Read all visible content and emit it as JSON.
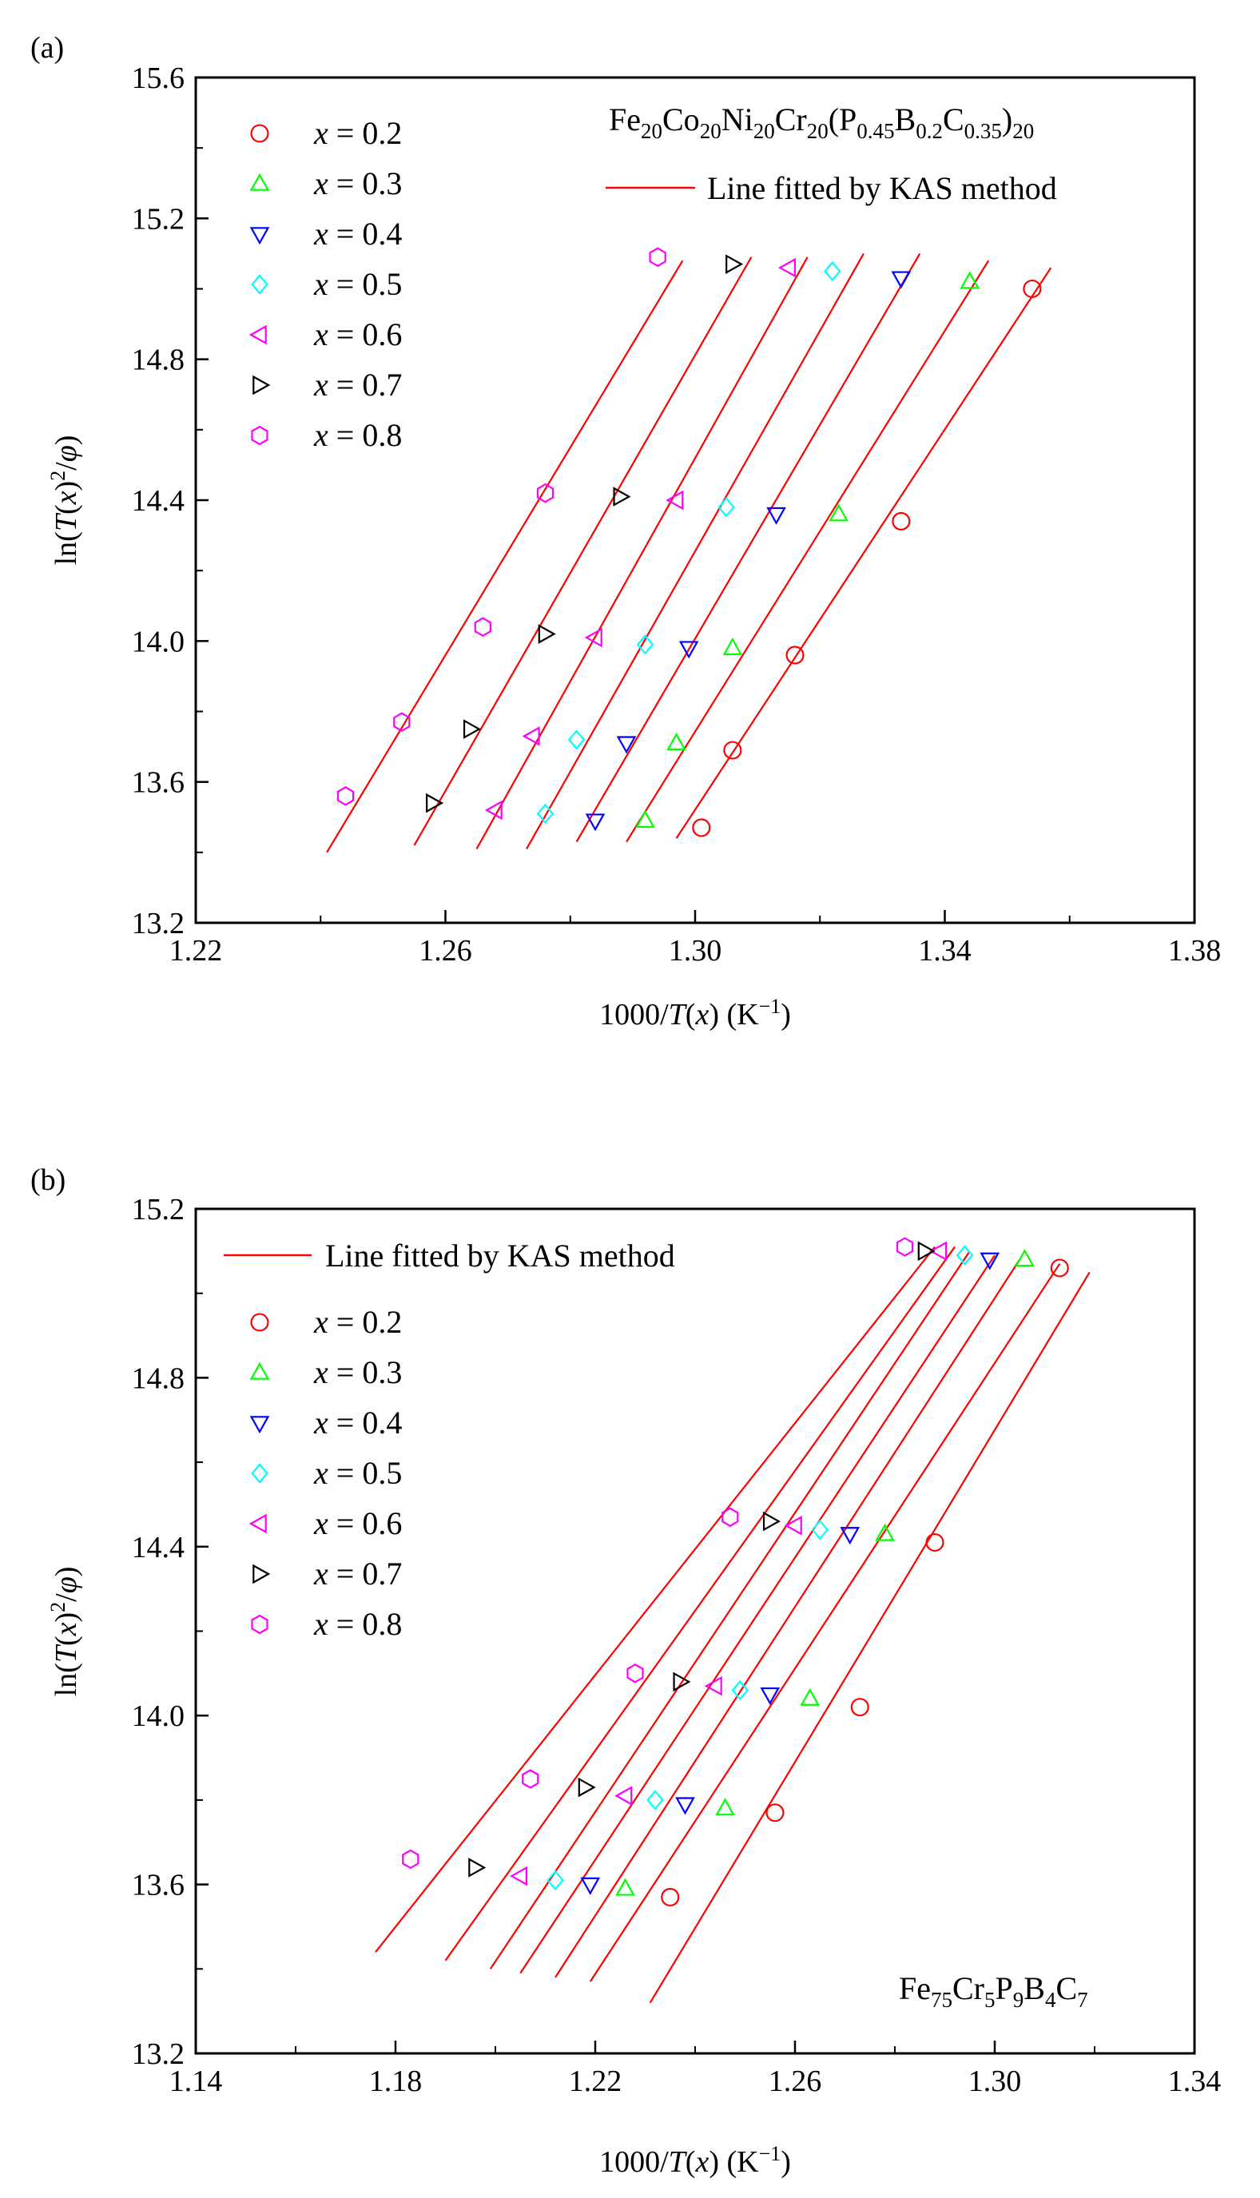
{
  "chart_data": [
    {
      "panel_label": "(a)",
      "type": "scatter",
      "title": "Fe20Co20Ni20Cr20(P0.45B0.2C0.35)20",
      "xlabel": "1000/T(x) (K−1)",
      "ylabel": "ln(T(x)2/φ)",
      "xlim": [
        1.22,
        1.38
      ],
      "ylim": [
        13.2,
        15.6
      ],
      "x_ticks": [
        "1.22",
        "1.26",
        "1.30",
        "1.34",
        "1.38"
      ],
      "y_ticks": [
        "13.2",
        "13.6",
        "14.0",
        "14.4",
        "14.8",
        "15.2",
        "15.6"
      ],
      "legend_position": "top-left",
      "fit_legend_position": "top-right",
      "fit_label": "Line fitted by KAS method",
      "series": [
        {
          "name": "x = 0.2",
          "marker": "circle",
          "color": "#ff0000",
          "points": [
            [
              1.301,
              13.47
            ],
            [
              1.306,
              13.69
            ],
            [
              1.316,
              13.96
            ],
            [
              1.333,
              14.34
            ],
            [
              1.354,
              15.0
            ]
          ],
          "fit": [
            [
              1.297,
              13.44
            ],
            [
              1.357,
              15.06
            ]
          ]
        },
        {
          "name": "x = 0.3",
          "marker": "triangle-up",
          "color": "#00ff00",
          "points": [
            [
              1.292,
              13.49
            ],
            [
              1.297,
              13.71
            ],
            [
              1.306,
              13.98
            ],
            [
              1.323,
              14.36
            ],
            [
              1.344,
              15.02
            ]
          ],
          "fit": [
            [
              1.289,
              13.43
            ],
            [
              1.347,
              15.08
            ]
          ]
        },
        {
          "name": "x = 0.4",
          "marker": "triangle-down",
          "color": "#0000ff",
          "points": [
            [
              1.284,
              13.49
            ],
            [
              1.289,
              13.71
            ],
            [
              1.299,
              13.98
            ],
            [
              1.313,
              14.36
            ],
            [
              1.333,
              15.03
            ]
          ],
          "fit": [
            [
              1.281,
              13.43
            ],
            [
              1.336,
              15.1
            ]
          ]
        },
        {
          "name": "x = 0.5",
          "marker": "diamond",
          "color": "#00ffff",
          "points": [
            [
              1.276,
              13.51
            ],
            [
              1.281,
              13.72
            ],
            [
              1.292,
              13.99
            ],
            [
              1.305,
              14.38
            ],
            [
              1.322,
              15.05
            ]
          ],
          "fit": [
            [
              1.273,
              13.41
            ],
            [
              1.327,
              15.1
            ]
          ]
        },
        {
          "name": "x = 0.6",
          "marker": "triangle-left",
          "color": "#ff00ff",
          "points": [
            [
              1.268,
              13.52
            ],
            [
              1.274,
              13.73
            ],
            [
              1.284,
              14.01
            ],
            [
              1.297,
              14.4
            ],
            [
              1.315,
              15.06
            ]
          ],
          "fit": [
            [
              1.265,
              13.41
            ],
            [
              1.318,
              15.09
            ]
          ]
        },
        {
          "name": "x = 0.7",
          "marker": "triangle-right",
          "color": "#000000",
          "points": [
            [
              1.258,
              13.54
            ],
            [
              1.264,
              13.75
            ],
            [
              1.276,
              14.02
            ],
            [
              1.288,
              14.41
            ],
            [
              1.306,
              15.07
            ]
          ],
          "fit": [
            [
              1.255,
              13.42
            ],
            [
              1.309,
              15.09
            ]
          ]
        },
        {
          "name": "x = 0.8",
          "marker": "hexagon",
          "color": "#ff00ff",
          "points": [
            [
              1.244,
              13.56
            ],
            [
              1.253,
              13.77
            ],
            [
              1.266,
              14.04
            ],
            [
              1.276,
              14.42
            ],
            [
              1.294,
              15.09
            ]
          ],
          "fit": [
            [
              1.241,
              13.4
            ],
            [
              1.298,
              15.08
            ]
          ]
        }
      ]
    },
    {
      "panel_label": "(b)",
      "type": "scatter",
      "title": "Fe75Cr5P9B4C7",
      "xlabel": "1000/T(x) (K−1)",
      "ylabel": "ln(T(x)2/φ)",
      "xlim": [
        1.14,
        1.34
      ],
      "ylim": [
        13.2,
        15.2
      ],
      "x_ticks": [
        "1.14",
        "1.18",
        "1.22",
        "1.26",
        "1.30",
        "1.34"
      ],
      "y_ticks": [
        "13.2",
        "13.6",
        "14.0",
        "14.4",
        "14.8",
        "15.2"
      ],
      "legend_position": "top-left",
      "alloy_label_position": "bottom-right",
      "fit_label": "Line fitted by KAS method",
      "series": [
        {
          "name": "x = 0.2",
          "marker": "circle",
          "color": "#ff0000",
          "points": [
            [
              1.235,
              13.57
            ],
            [
              1.256,
              13.77
            ],
            [
              1.273,
              14.02
            ],
            [
              1.288,
              14.41
            ],
            [
              1.313,
              15.06
            ]
          ],
          "fit": [
            [
              1.231,
              13.32
            ],
            [
              1.319,
              15.05
            ]
          ]
        },
        {
          "name": "x = 0.3",
          "marker": "triangle-up",
          "color": "#00ff00",
          "points": [
            [
              1.226,
              13.59
            ],
            [
              1.246,
              13.78
            ],
            [
              1.263,
              14.04
            ],
            [
              1.278,
              14.43
            ],
            [
              1.306,
              15.08
            ]
          ],
          "fit": [
            [
              1.219,
              13.37
            ],
            [
              1.313,
              15.07
            ]
          ]
        },
        {
          "name": "x = 0.4",
          "marker": "triangle-down",
          "color": "#0000ff",
          "points": [
            [
              1.219,
              13.6
            ],
            [
              1.238,
              13.79
            ],
            [
              1.255,
              14.05
            ],
            [
              1.271,
              14.43
            ],
            [
              1.299,
              15.08
            ]
          ],
          "fit": [
            [
              1.212,
              13.38
            ],
            [
              1.305,
              15.08
            ]
          ]
        },
        {
          "name": "x = 0.5",
          "marker": "diamond",
          "color": "#00ffff",
          "points": [
            [
              1.212,
              13.61
            ],
            [
              1.232,
              13.8
            ],
            [
              1.249,
              14.06
            ],
            [
              1.265,
              14.44
            ],
            [
              1.294,
              15.09
            ]
          ],
          "fit": [
            [
              1.205,
              13.39
            ],
            [
              1.3,
              15.09
            ]
          ]
        },
        {
          "name": "x = 0.6",
          "marker": "triangle-left",
          "color": "#ff00ff",
          "points": [
            [
              1.205,
              13.62
            ],
            [
              1.226,
              13.81
            ],
            [
              1.244,
              14.07
            ],
            [
              1.26,
              14.45
            ],
            [
              1.289,
              15.1
            ]
          ],
          "fit": [
            [
              1.199,
              13.4
            ],
            [
              1.295,
              15.1
            ]
          ]
        },
        {
          "name": "x = 0.7",
          "marker": "triangle-right",
          "color": "#000000",
          "points": [
            [
              1.196,
              13.64
            ],
            [
              1.218,
              13.83
            ],
            [
              1.237,
              14.08
            ],
            [
              1.255,
              14.46
            ],
            [
              1.286,
              15.1
            ]
          ],
          "fit": [
            [
              1.19,
              13.42
            ],
            [
              1.292,
              15.11
            ]
          ]
        },
        {
          "name": "x = 0.8",
          "marker": "hexagon",
          "color": "#ff00ff",
          "points": [
            [
              1.183,
              13.66
            ],
            [
              1.207,
              13.85
            ],
            [
              1.228,
              14.1
            ],
            [
              1.247,
              14.47
            ],
            [
              1.282,
              15.11
            ]
          ],
          "fit": [
            [
              1.176,
              13.44
            ],
            [
              1.288,
              15.11
            ]
          ]
        }
      ]
    }
  ]
}
